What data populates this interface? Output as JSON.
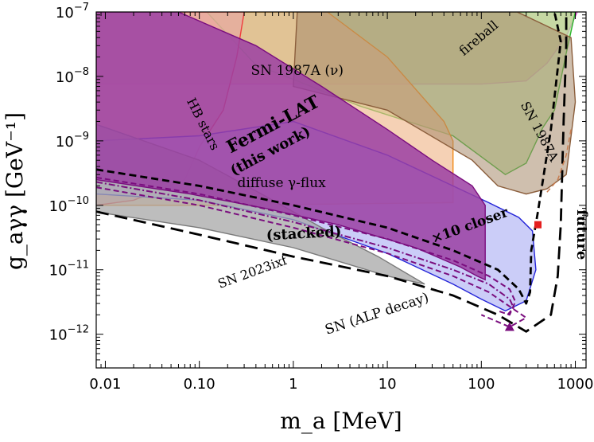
{
  "chart_data": {
    "type": "area",
    "xlabel": "m_a [MeV]",
    "ylabel": "g_aγγ [GeV⁻¹]",
    "xscale": "log",
    "yscale": "log",
    "xlim": [
      0.008,
      1300
    ],
    "ylim": [
      3e-13,
      1e-07
    ],
    "x_ticks": [
      {
        "value": 0.01,
        "label": "0.01"
      },
      {
        "value": 0.1,
        "label": "0.10"
      },
      {
        "value": 1,
        "label": "1"
      },
      {
        "value": 10,
        "label": "10"
      },
      {
        "value": 100,
        "label": "100"
      },
      {
        "value": 1000,
        "label": "1000"
      }
    ],
    "y_ticks": [
      {
        "value": 1e-12,
        "base": "10",
        "exp": "−12"
      },
      {
        "value": 1e-11,
        "base": "10",
        "exp": "−11"
      },
      {
        "value": 1e-10,
        "base": "10",
        "exp": "−10"
      },
      {
        "value": 1e-09,
        "base": "10",
        "exp": "−9"
      },
      {
        "value": 1e-08,
        "base": "10",
        "exp": "−8"
      },
      {
        "value": 1e-07,
        "base": "10",
        "exp": "−7"
      }
    ],
    "regions": [
      {
        "id": "sn1987a-nu",
        "fill": "#e8b4b0",
        "stroke": "#d74acf",
        "opacity": 0.9,
        "points": [
          [
            0.008,
            1e-07
          ],
          [
            300,
            1e-07
          ],
          [
            1050,
            1e-07
          ],
          [
            800,
            4.2e-08
          ],
          [
            500,
            1.6e-08
          ],
          [
            300,
            8.5e-09
          ],
          [
            100,
            7.6e-09
          ],
          [
            0.008,
            7.6e-09
          ]
        ]
      },
      {
        "id": "sn1987a-gamma",
        "fill": "#b7e49a",
        "stroke": "#2bb52b",
        "opacity": 0.7,
        "points": [
          [
            0.12,
            1e-07
          ],
          [
            1000,
            1e-07
          ],
          [
            800,
            2.3e-08
          ],
          [
            600,
            3e-09
          ],
          [
            450,
            1.6e-09
          ],
          [
            300,
            4.5e-10
          ],
          [
            180,
            3e-10
          ],
          [
            50,
            1.2e-09
          ],
          [
            5,
            3.5e-09
          ],
          [
            1,
            9e-09
          ],
          [
            0.4,
            1.5e-08
          ],
          [
            0.12,
            1e-07
          ]
        ]
      },
      {
        "id": "diffuse-gamma-flux",
        "fill": "#f0b98d",
        "stroke": "#f28a18",
        "opacity": 0.65,
        "points": [
          [
            0.008,
            1e-07
          ],
          [
            2.3,
            1e-07
          ],
          [
            10,
            2e-08
          ],
          [
            40,
            2e-09
          ],
          [
            50,
            1e-09
          ],
          [
            50,
            1.1e-10
          ],
          [
            0.15,
            1e-10
          ],
          [
            0.008,
            1e-10
          ]
        ]
      },
      {
        "id": "hb-stars",
        "fill": "#e7a3a3",
        "stroke": "#ef3d3d",
        "opacity": 0.6,
        "points": [
          [
            0.3,
            1e-07
          ],
          [
            0.25,
            2e-08
          ],
          [
            0.18,
            3e-09
          ],
          [
            0.1,
            8e-10
          ],
          [
            0.07,
            2.5e-10
          ],
          [
            0.02,
            1.2e-10
          ],
          [
            0.008,
            1e-10
          ],
          [
            0.008,
            1e-07
          ]
        ]
      },
      {
        "id": "fireball",
        "fill": "#a88a6b",
        "stroke": "#8b5e3c",
        "opacity": 0.55,
        "points": [
          [
            1.1,
            1e-07
          ],
          [
            240,
            1e-07
          ],
          [
            900,
            4e-08
          ],
          [
            1000,
            4e-09
          ],
          [
            800,
            3e-10
          ],
          [
            500,
            1.8e-10
          ],
          [
            300,
            1.5e-10
          ],
          [
            150,
            2e-10
          ],
          [
            80,
            5e-10
          ],
          [
            10,
            3e-09
          ],
          [
            1,
            7e-09
          ],
          [
            1.1,
            1e-07
          ]
        ]
      },
      {
        "id": "sn-alp-decay",
        "fill": "#b9bcf5",
        "stroke": "#2424d8",
        "opacity": 0.75,
        "points": [
          [
            0.008,
            1.5e-10
          ],
          [
            0.1,
            1.2e-10
          ],
          [
            1,
            6e-11
          ],
          [
            10,
            1.8e-11
          ],
          [
            50,
            6e-12
          ],
          [
            100,
            3.5e-12
          ],
          [
            180,
            2.3e-12
          ],
          [
            300,
            3.3e-12
          ],
          [
            380,
            1e-11
          ],
          [
            350,
            4e-11
          ],
          [
            250,
            6.5e-11
          ],
          [
            120,
            1.1e-10
          ],
          [
            10,
            6e-10
          ],
          [
            1,
            2e-09
          ],
          [
            0.1,
            1.2e-09
          ],
          [
            0.008,
            1e-09
          ]
        ]
      },
      {
        "id": "sn-2023ixf",
        "fill": "#a7a7a7",
        "stroke": "#7a7a7a",
        "opacity": 0.75,
        "points": [
          [
            0.008,
            8e-11
          ],
          [
            0.008,
            1.8e-09
          ],
          [
            0.1,
            5e-10
          ],
          [
            0.5,
            1.4e-10
          ],
          [
            2,
            4.5e-11
          ],
          [
            8,
            1.6e-11
          ],
          [
            25,
            6e-12
          ],
          [
            10,
            8e-12
          ],
          [
            1,
            2.2e-11
          ],
          [
            0.1,
            4.5e-11
          ],
          [
            0.01,
            7.5e-11
          ]
        ]
      },
      {
        "id": "fermi-lat",
        "fill": "#9b3fa3",
        "stroke": "#7a0d7e",
        "opacity": 0.85,
        "points": [
          [
            0.008,
            1e-07
          ],
          [
            0.06,
            1e-07
          ],
          [
            0.4,
            3e-08
          ],
          [
            2,
            7e-09
          ],
          [
            10,
            1.5e-09
          ],
          [
            30,
            5e-10
          ],
          [
            80,
            2e-10
          ],
          [
            110,
            1e-10
          ],
          [
            110,
            7e-12
          ],
          [
            90,
            8e-12
          ],
          [
            60,
            1.1e-11
          ],
          [
            20,
            2.2e-11
          ],
          [
            3,
            5e-11
          ],
          [
            0.5,
            9e-11
          ],
          [
            0.08,
            1.5e-10
          ],
          [
            0.008,
            2.5e-10
          ]
        ]
      }
    ],
    "curves": [
      {
        "id": "stacked-1",
        "color": "#7a0d7e",
        "dash": "7 4",
        "width": 2,
        "points": [
          [
            0.008,
            2.7e-10
          ],
          [
            0.1,
            1.5e-10
          ],
          [
            1,
            7e-11
          ],
          [
            10,
            3e-11
          ],
          [
            50,
            1.4e-11
          ],
          [
            120,
            8e-12
          ],
          [
            200,
            5e-12
          ],
          [
            230,
            3.2e-12
          ],
          [
            200,
            2e-12
          ],
          [
            150,
            2.3e-12
          ]
        ]
      },
      {
        "id": "stacked-2",
        "color": "#7a0d7e",
        "dash": "8 3 2 3",
        "width": 2,
        "points": [
          [
            0.008,
            2.3e-10
          ],
          [
            0.1,
            1.2e-10
          ],
          [
            1,
            5.5e-11
          ],
          [
            10,
            2.2e-11
          ],
          [
            50,
            1e-11
          ],
          [
            120,
            6e-12
          ],
          [
            200,
            3.5e-12
          ],
          [
            220,
            2.6e-12
          ],
          [
            190,
            2e-12
          ]
        ]
      },
      {
        "id": "stacked-3",
        "color": "#7a0d7e",
        "dash": "7 4",
        "width": 2,
        "points": [
          [
            0.008,
            1.9e-10
          ],
          [
            0.1,
            1e-10
          ],
          [
            1,
            4.5e-11
          ],
          [
            10,
            1.8e-11
          ],
          [
            50,
            8e-12
          ],
          [
            120,
            4.5e-12
          ],
          [
            200,
            2.7e-12
          ],
          [
            300,
            1.8e-12
          ],
          [
            200,
            1.3e-12
          ],
          [
            100,
            2e-12
          ]
        ]
      },
      {
        "id": "x10-closer",
        "color": "#000000",
        "dash": "9 5",
        "width": 2.8,
        "points": [
          [
            0.008,
            3.6e-10
          ],
          [
            0.1,
            2e-10
          ],
          [
            1,
            1e-10
          ],
          [
            10,
            4.5e-11
          ],
          [
            50,
            2e-11
          ],
          [
            150,
            1e-11
          ],
          [
            250,
            5e-12
          ],
          [
            300,
            3e-12
          ],
          [
            330,
            4.5e-12
          ],
          [
            340,
            2e-11
          ],
          [
            400,
            8e-11
          ],
          [
            550,
            1.5e-09
          ],
          [
            700,
            3.5e-08
          ],
          [
            600,
            1e-07
          ]
        ]
      },
      {
        "id": "future",
        "color": "#000000",
        "dash": "16 8",
        "width": 2.8,
        "points": [
          [
            0.008,
            8e-11
          ],
          [
            0.1,
            3.5e-11
          ],
          [
            1,
            1.6e-11
          ],
          [
            10,
            8e-12
          ],
          [
            50,
            4e-12
          ],
          [
            150,
            2e-12
          ],
          [
            300,
            1.1e-12
          ],
          [
            550,
            2e-12
          ],
          [
            650,
            8e-12
          ],
          [
            700,
            5e-11
          ],
          [
            750,
            2e-09
          ],
          [
            800,
            3e-08
          ],
          [
            800,
            1e-07
          ]
        ]
      },
      {
        "id": "sn1987a-edge",
        "color": "#c97d50",
        "dash": "6 4",
        "width": 1.5,
        "points": [
          [
            500,
            1.6e-10
          ],
          [
            650,
            2.5e-10
          ],
          [
            800,
            6e-10
          ],
          [
            900,
            1.5e-09
          ]
        ]
      }
    ],
    "markers": [
      {
        "shape": "square",
        "x": 400,
        "y": 5e-11,
        "color": "#e51e1e"
      },
      {
        "shape": "triangle",
        "x": 200,
        "y": 1.3e-12,
        "color": "#7a0d7e"
      }
    ],
    "annotations": [
      {
        "text": "SN 1987A (ν)",
        "x": 1.1,
        "y": 1.05e-08,
        "size": 17,
        "rotate": 0,
        "weight": "normal",
        "color": "#000"
      },
      {
        "text": "fireball",
        "x": 100,
        "y": 3.5e-08,
        "size": 16,
        "rotate": 40,
        "weight": "normal",
        "color": "#5b3a1e"
      },
      {
        "text": "SN 1987A",
        "x": 380,
        "y": 1.3e-09,
        "size": 16,
        "rotate": -62,
        "weight": "normal",
        "color": "#000"
      },
      {
        "text": "HB stars",
        "x": 0.1,
        "y": 1.7e-09,
        "size": 16,
        "rotate": -63,
        "weight": "normal",
        "color": "#000"
      },
      {
        "text": "Fermi-LAT",
        "x": 0.65,
        "y": 1.5e-09,
        "size": 22,
        "rotate": 28,
        "weight": "bold",
        "color": "#000"
      },
      {
        "text": "(this work)",
        "x": 0.6,
        "y": 6e-10,
        "size": 18,
        "rotate": 28,
        "weight": "bold",
        "color": "#000"
      },
      {
        "text": "diffuse γ-flux",
        "x": 0.75,
        "y": 1.9e-10,
        "size": 17,
        "rotate": 0,
        "weight": "normal",
        "color": "#000"
      },
      {
        "text": "(stacked)",
        "x": 1.3,
        "y": 3.1e-11,
        "size": 18,
        "rotate": 3,
        "weight": "bold",
        "color": "#000"
      },
      {
        "text": "×10 closer",
        "x": 78,
        "y": 4.2e-11,
        "size": 17,
        "rotate": 20,
        "weight": "bold",
        "color": "#000"
      },
      {
        "text": "future",
        "x": 1050,
        "y": 3.5e-11,
        "size": 18,
        "rotate": -90,
        "weight": "bold",
        "color": "#000"
      },
      {
        "text": "SN 2023ixf",
        "x": 0.38,
        "y": 8e-12,
        "size": 16,
        "rotate": 20,
        "weight": "normal",
        "color": "#000"
      },
      {
        "text": "SN (ALP decay)",
        "x": 8,
        "y": 1.8e-12,
        "size": 17,
        "rotate": 18,
        "weight": "normal",
        "color": "#2424d8"
      }
    ]
  }
}
